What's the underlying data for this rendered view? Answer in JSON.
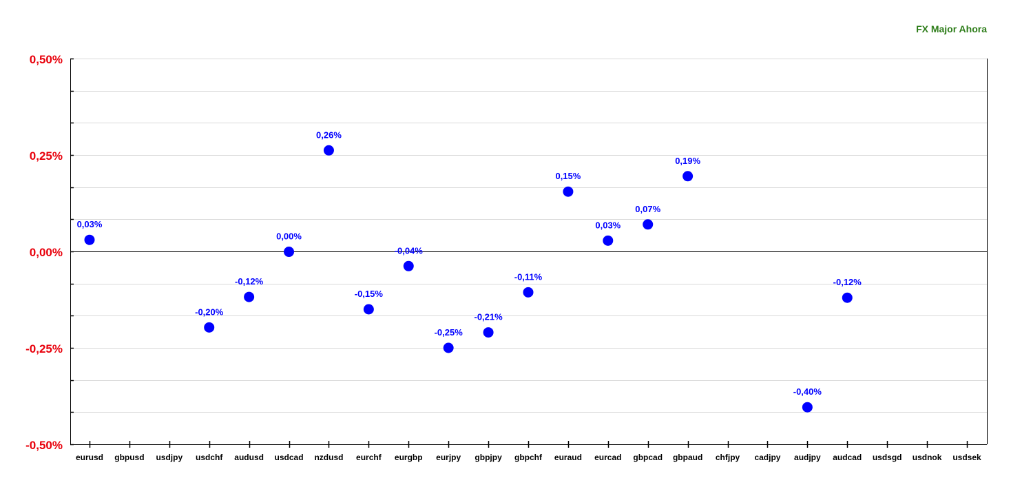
{
  "chart_data": {
    "type": "scatter",
    "title": "FX Major Ahora",
    "title_color": "#2e7d1a",
    "axis_label_color": "#e8000b",
    "point_color": "#0000ff",
    "ylim": [
      -0.5,
      0.5
    ],
    "y_ticks": [
      {
        "value": 0.5,
        "label": "0,50%"
      },
      {
        "value": 0.25,
        "label": "0,25%"
      },
      {
        "value": 0.0,
        "label": "0,00%"
      },
      {
        "value": -0.25,
        "label": "-0,25%"
      },
      {
        "value": -0.5,
        "label": "-0,50%"
      }
    ],
    "grid": true,
    "categories": [
      "eurusd",
      "gbpusd",
      "usdjpy",
      "usdchf",
      "audusd",
      "usdcad",
      "nzdusd",
      "eurchf",
      "eurgbp",
      "eurjpy",
      "gbpjpy",
      "gbpchf",
      "euraud",
      "eurcad",
      "gbpcad",
      "gbpaud",
      "chfjpy",
      "cadjpy",
      "audjpy",
      "audcad",
      "usdsgd",
      "usdnok",
      "usdsek"
    ],
    "values": [
      0.03,
      null,
      null,
      -0.197,
      -0.118,
      -0.001,
      0.262,
      -0.15,
      -0.038,
      -0.25,
      -0.21,
      -0.106,
      0.155,
      0.028,
      0.07,
      0.195,
      null,
      null,
      -0.404,
      -0.12,
      null,
      null,
      null
    ],
    "labels": [
      "0,03%",
      "",
      "",
      "-0,20%",
      "-0,12%",
      "0,00%",
      "0,26%",
      "-0,15%",
      "-0,04%",
      "-0,25%",
      "-0,21%",
      "-0,11%",
      "0,15%",
      "0,03%",
      "0,07%",
      "0,19%",
      "",
      "",
      "-0,40%",
      "-0,12%",
      "",
      "",
      ""
    ]
  }
}
